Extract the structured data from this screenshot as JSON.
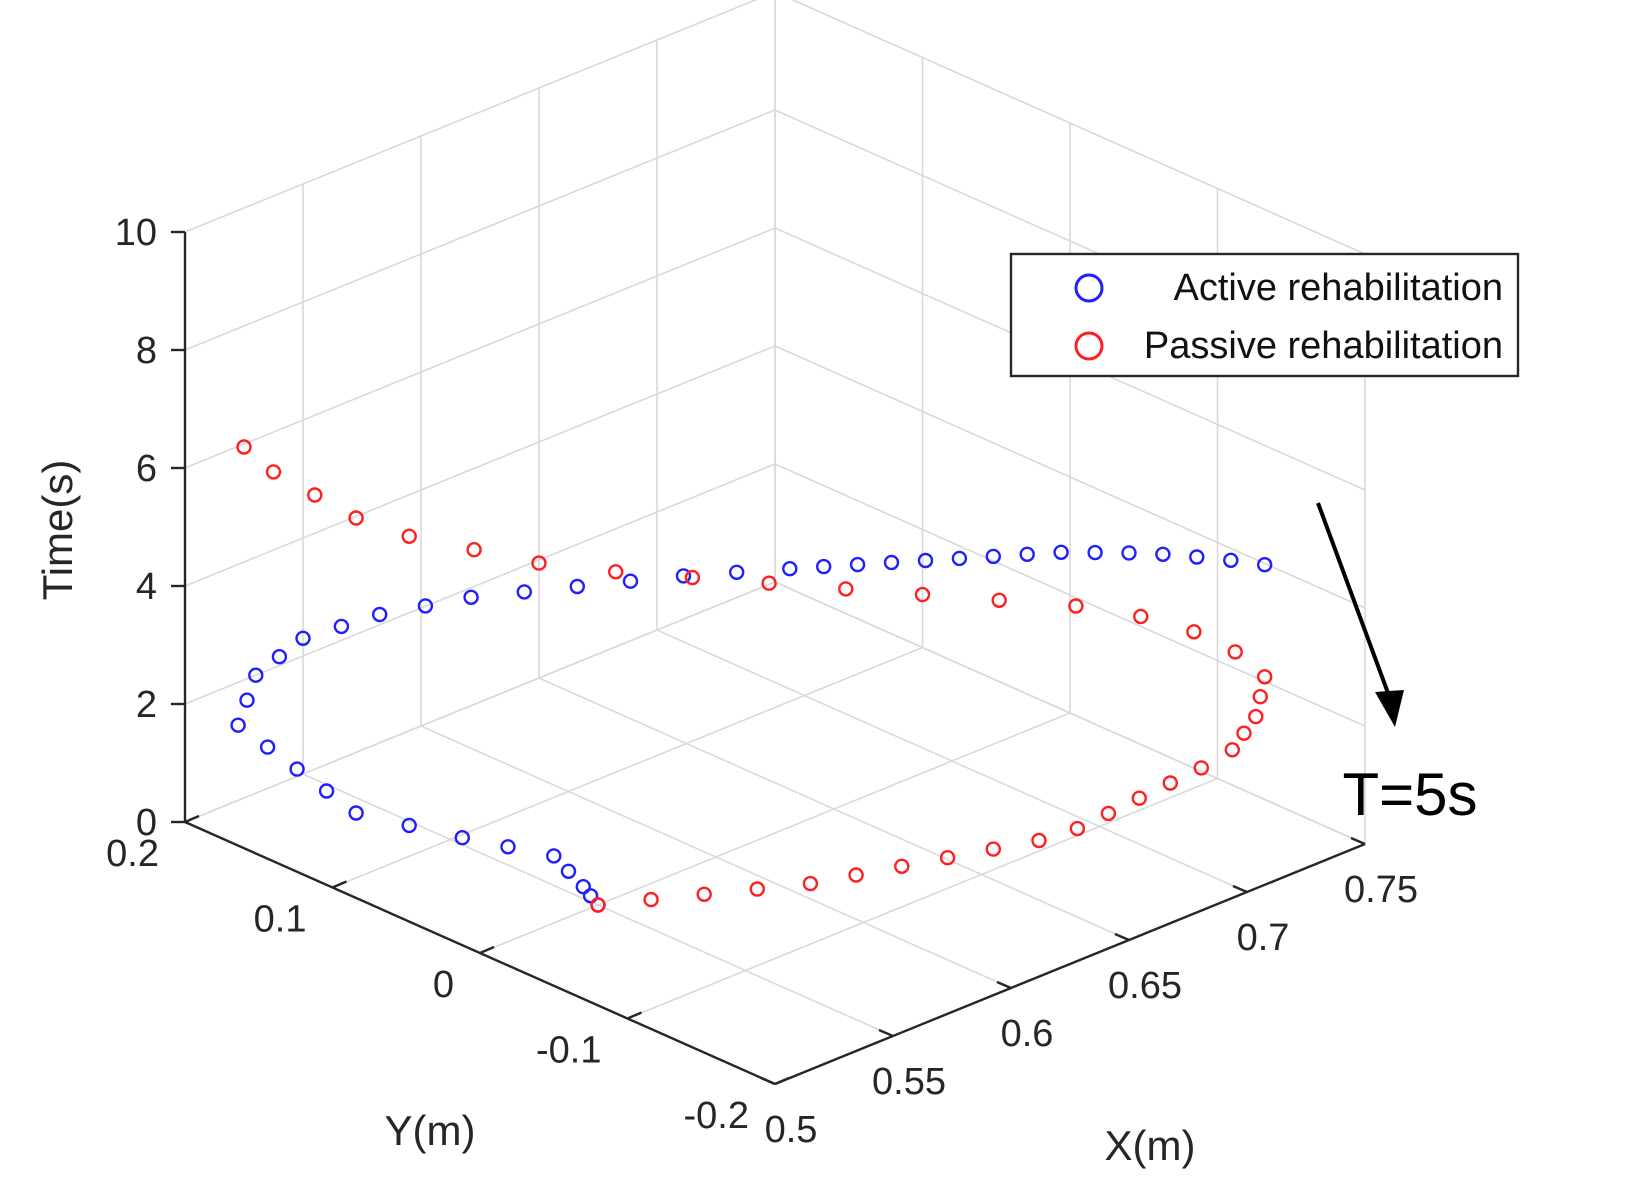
{
  "chart_data": {
    "type": "scatter3d",
    "title": "",
    "xlabel": "X(m)",
    "ylabel": "Y(m)",
    "zlabel": "Time(s)",
    "xlim": [
      0.5,
      0.75
    ],
    "ylim": [
      -0.2,
      0.2
    ],
    "zlim": [
      0,
      10
    ],
    "x_ticks": [
      0.5,
      0.55,
      0.6,
      0.65,
      0.7,
      0.75
    ],
    "x_tick_labels": [
      "0.5",
      "0.55",
      "0.6",
      "0.65",
      "0.7",
      "0.75"
    ],
    "y_ticks": [
      -0.2,
      -0.1,
      0,
      0.1,
      0.2
    ],
    "y_tick_labels": [
      "-0.2",
      "-0.1",
      "0",
      "0.1",
      "0.2"
    ],
    "z_ticks": [
      0,
      2,
      4,
      6,
      8,
      10
    ],
    "z_tick_labels": [
      "0",
      "2",
      "4",
      "6",
      "8",
      "10"
    ],
    "grid": true,
    "legend_position": "top-right",
    "series": [
      {
        "name": "Active rehabilitation",
        "color": "#1f1fff",
        "marker": "circle-open",
        "x": [
          0.55,
          0.55,
          0.55,
          0.55,
          0.55,
          0.54,
          0.53,
          0.52,
          0.51,
          0.51,
          0.51,
          0.51,
          0.51,
          0.52,
          0.53,
          0.54,
          0.55,
          0.56,
          0.57,
          0.58,
          0.59,
          0.6,
          0.61,
          0.62,
          0.63,
          0.64,
          0.65,
          0.655,
          0.66,
          0.665,
          0.67,
          0.675,
          0.68,
          0.685,
          0.69,
          0.695,
          0.7,
          0.705,
          0.71,
          0.715,
          0.72
        ],
        "y": [
          0.0,
          0.005,
          0.01,
          0.02,
          0.03,
          0.045,
          0.06,
          0.08,
          0.1,
          0.12,
          0.14,
          0.16,
          0.18,
          0.19,
          0.2,
          0.2,
          0.2,
          0.19,
          0.18,
          0.165,
          0.15,
          0.13,
          0.11,
          0.09,
          0.07,
          0.05,
          0.03,
          0.015,
          0.0,
          -0.015,
          -0.03,
          -0.045,
          -0.06,
          -0.075,
          -0.09,
          -0.105,
          -0.12,
          -0.135,
          -0.15,
          -0.165,
          -0.18
        ],
        "z": [
          0.0,
          0.1,
          0.2,
          0.35,
          0.5,
          0.65,
          0.8,
          0.95,
          1.1,
          1.25,
          1.4,
          1.55,
          1.7,
          1.85,
          2.0,
          2.15,
          2.3,
          2.45,
          2.6,
          2.75,
          2.9,
          3.05,
          3.2,
          3.35,
          3.5,
          3.62,
          3.74,
          3.86,
          3.98,
          4.1,
          4.22,
          4.34,
          4.46,
          4.58,
          4.7,
          4.78,
          4.86,
          4.92,
          4.96,
          4.99,
          5.0
        ]
      },
      {
        "name": "Passive rehabilitation",
        "color": "#ff1f1f",
        "marker": "circle-open",
        "x": [
          0.55,
          0.56,
          0.57,
          0.58,
          0.59,
          0.6,
          0.61,
          0.62,
          0.63,
          0.64,
          0.65,
          0.66,
          0.67,
          0.68,
          0.69,
          0.7,
          0.705,
          0.71,
          0.715,
          0.72,
          0.72,
          0.715,
          0.705,
          0.69,
          0.67,
          0.65,
          0.63,
          0.61,
          0.59,
          0.57,
          0.55,
          0.535,
          0.52,
          0.51,
          0.505,
          0.5,
          0.5
        ],
        "y": [
          0.0,
          -0.02,
          -0.04,
          -0.06,
          -0.08,
          -0.095,
          -0.11,
          -0.125,
          -0.14,
          -0.155,
          -0.165,
          -0.17,
          -0.175,
          -0.18,
          -0.185,
          -0.19,
          -0.19,
          -0.19,
          -0.185,
          -0.18,
          -0.16,
          -0.14,
          -0.12,
          -0.1,
          -0.08,
          -0.06,
          -0.04,
          -0.02,
          0.0,
          0.02,
          0.04,
          0.06,
          0.08,
          0.1,
          0.12,
          0.14,
          0.16
        ],
        "z": [
          0.0,
          0.15,
          0.3,
          0.45,
          0.6,
          0.75,
          0.9,
          1.05,
          1.2,
          1.35,
          1.5,
          1.65,
          1.8,
          1.95,
          2.1,
          2.3,
          2.5,
          2.7,
          2.9,
          3.1,
          3.3,
          3.5,
          3.7,
          3.9,
          4.1,
          4.3,
          4.5,
          4.7,
          4.9,
          5.1,
          5.35,
          5.6,
          5.85,
          6.1,
          6.35,
          6.6,
          6.8
        ]
      }
    ],
    "annotations": [
      {
        "text": "T=5s",
        "target_series": "Active rehabilitation",
        "target_point": {
          "x": 0.72,
          "y": -0.18,
          "z": 5.0
        }
      }
    ]
  }
}
